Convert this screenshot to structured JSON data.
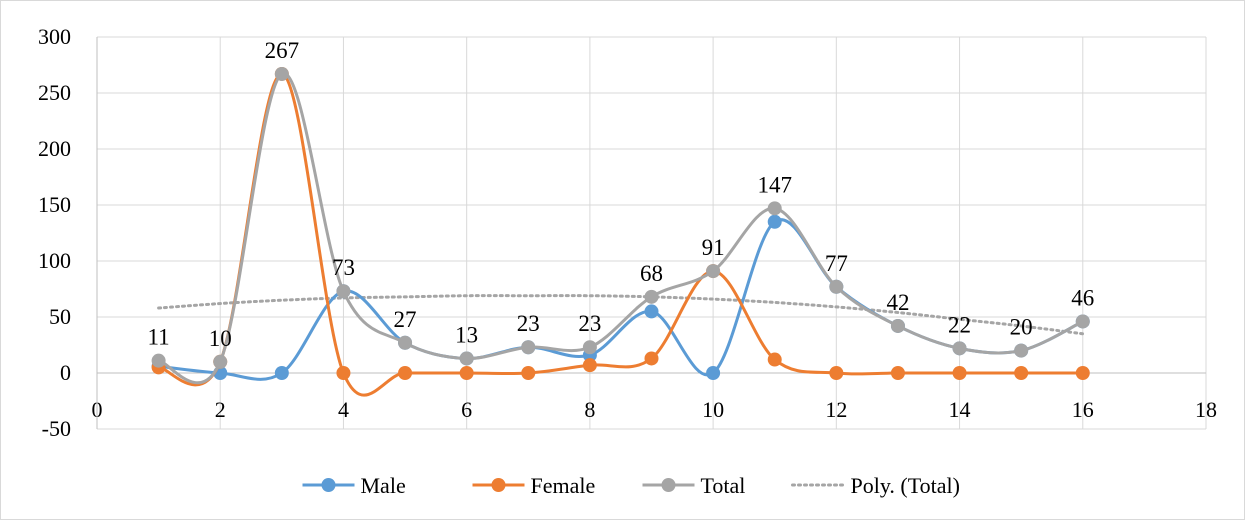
{
  "chart_data": {
    "type": "scatter",
    "title": "",
    "xlabel": "",
    "ylabel": "",
    "xlim": [
      0,
      18
    ],
    "ylim": [
      -50,
      300
    ],
    "x_ticks": [
      0,
      2,
      4,
      6,
      8,
      10,
      12,
      14,
      16,
      18
    ],
    "y_ticks": [
      -50,
      0,
      50,
      100,
      150,
      200,
      250,
      300
    ],
    "grid": true,
    "legend_position": "bottom",
    "x": [
      1,
      2,
      3,
      4,
      5,
      6,
      7,
      8,
      9,
      10,
      11,
      12,
      13,
      14,
      15,
      16
    ],
    "series": [
      {
        "name": "Male",
        "color": "#5b9bd5",
        "marker": "circle",
        "line": "smooth",
        "values": [
          6,
          0,
          0,
          73,
          27,
          13,
          23,
          16,
          55,
          0,
          135,
          77,
          42,
          22,
          20,
          46
        ]
      },
      {
        "name": "Female",
        "color": "#ed7d31",
        "marker": "circle",
        "line": "smooth",
        "values": [
          5,
          10,
          267,
          0,
          0,
          0,
          0,
          7,
          13,
          91,
          12,
          0,
          0,
          0,
          0,
          0
        ]
      },
      {
        "name": "Total",
        "color": "#a5a5a5",
        "marker": "circle",
        "line": "smooth",
        "values": [
          11,
          10,
          267,
          73,
          27,
          13,
          23,
          23,
          68,
          91,
          147,
          77,
          42,
          22,
          20,
          46
        ],
        "data_labels": [
          "11",
          "10",
          "267",
          "73",
          "27",
          "13",
          "23",
          "23",
          "68",
          "91",
          "147",
          "77",
          "42",
          "22",
          "20",
          "46"
        ]
      },
      {
        "name": "Poly. (Total)",
        "color": "#a5a5a5",
        "marker": "none",
        "line": "dotted",
        "trendline_of": "Total",
        "values": [
          58,
          62,
          65,
          67,
          68,
          69,
          69,
          69,
          68,
          66,
          63,
          59,
          54,
          48,
          42,
          35
        ]
      }
    ]
  }
}
